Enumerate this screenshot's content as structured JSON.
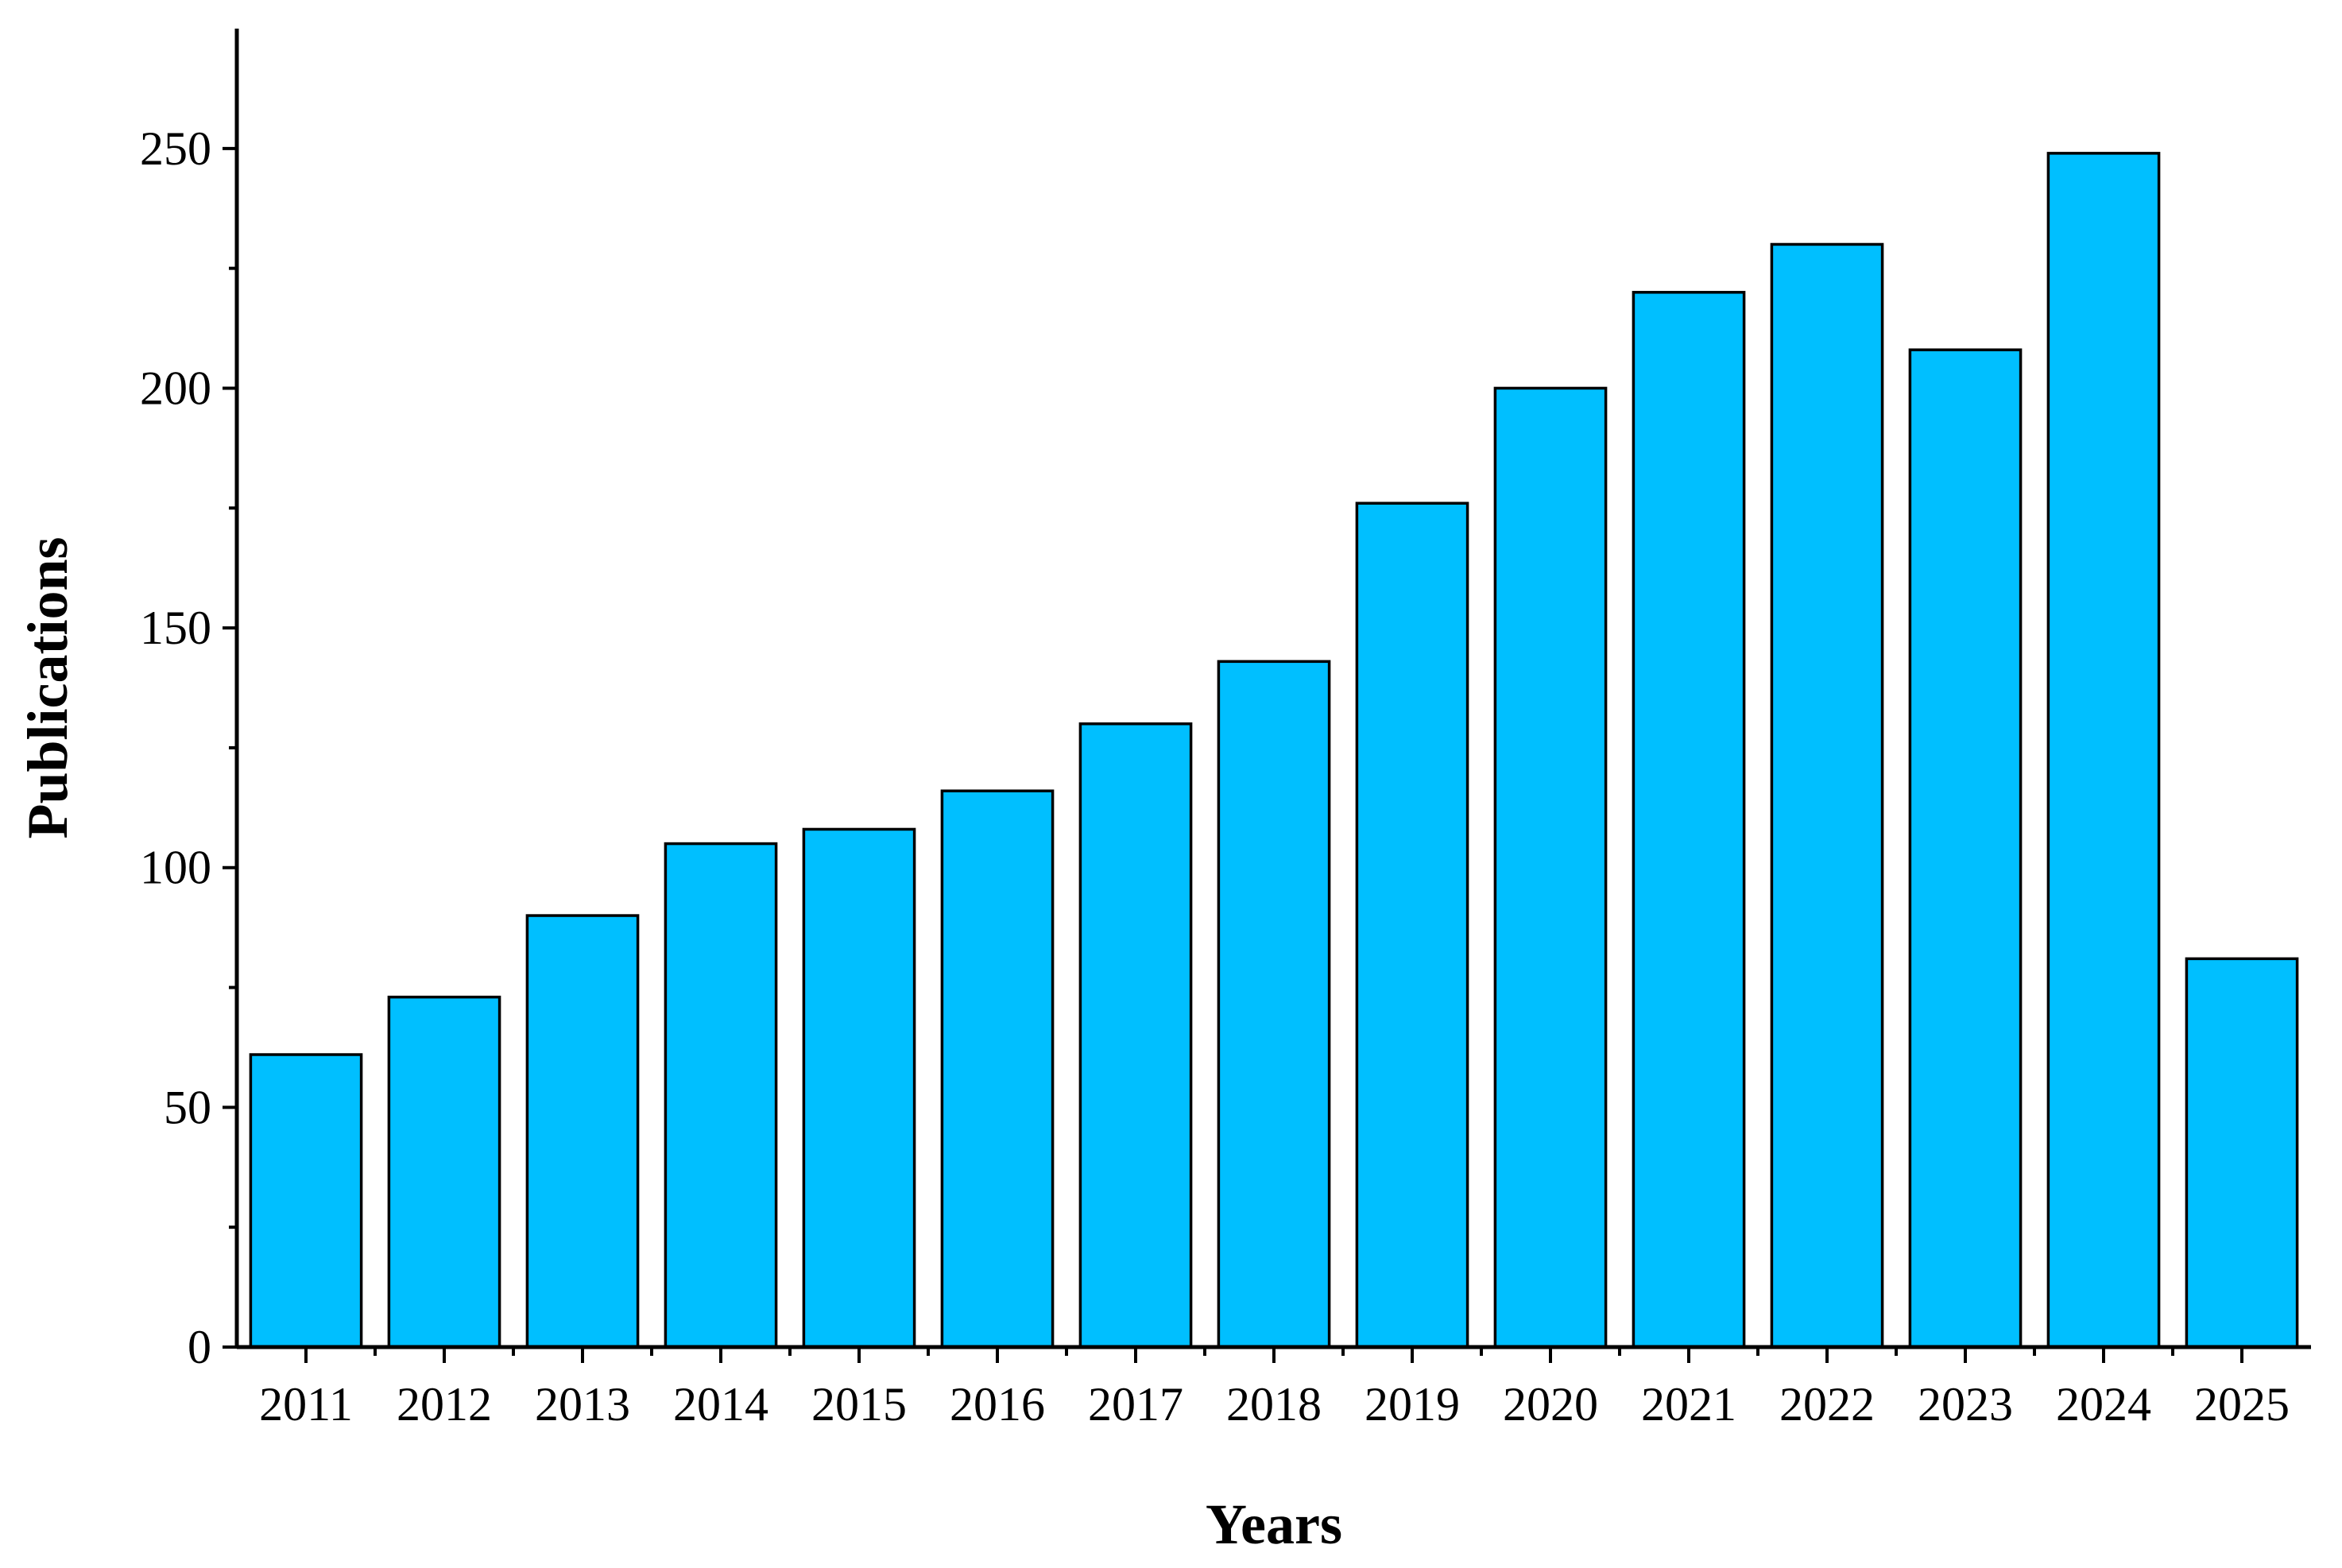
{
  "chart_data": {
    "type": "bar",
    "categories": [
      "2011",
      "2012",
      "2013",
      "2014",
      "2015",
      "2016",
      "2017",
      "2018",
      "2019",
      "2020",
      "2021",
      "2022",
      "2023",
      "2024",
      "2025"
    ],
    "series": [
      {
        "values": [
          61,
          73,
          90,
          105,
          108,
          116,
          130,
          143,
          176,
          200,
          220,
          230,
          208,
          249,
          81
        ]
      }
    ],
    "xlabel": "Years",
    "ylabel": "Publications",
    "ylim": [
      0,
      275
    ],
    "yticks": [
      0,
      50,
      100,
      150,
      200,
      250
    ],
    "yticks_minor": [
      25,
      75,
      125,
      175,
      225
    ],
    "grid": false,
    "legend": "none",
    "bar_color": "#00BFFF",
    "edge_color": "#000000"
  }
}
